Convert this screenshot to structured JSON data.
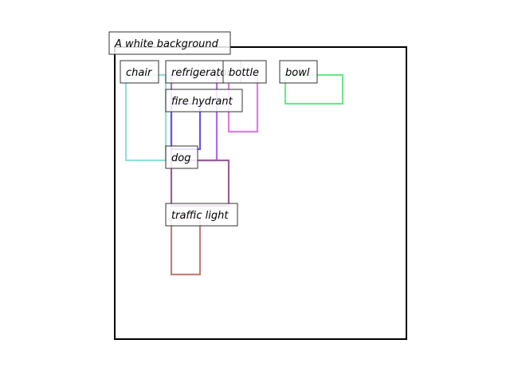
{
  "caption": "A white background",
  "canvas": {
    "border_color": "#000000"
  },
  "boxes": [
    {
      "label": "chair",
      "color": "#8fe0d8"
    },
    {
      "label": "refrigerator",
      "color": "#b06ae8"
    },
    {
      "label": "bottle",
      "color": "#df7ae6"
    },
    {
      "label": "bowl",
      "color": "#6fe887"
    },
    {
      "label": "fire hydrant",
      "color": "#6b55dd"
    },
    {
      "label": "dog",
      "color": "#9a5f9e"
    },
    {
      "label": "traffic light",
      "color": "#c0827b"
    }
  ]
}
